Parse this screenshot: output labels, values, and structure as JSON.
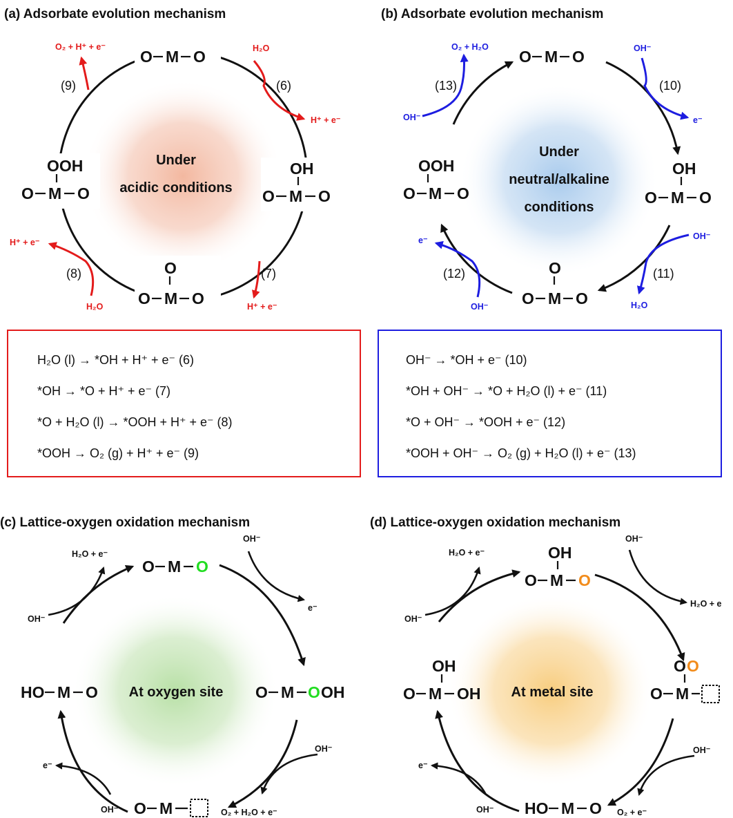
{
  "colors": {
    "acid": "#e31b1b",
    "base": "#1d1de0",
    "lattice_o_c": "#22dd22",
    "lattice_o_d": "#f28c1c",
    "glow_a": "#f3b8a0",
    "glow_b": "#a9cbed",
    "glow_c": "#b8e0a6",
    "glow_d": "#f8cd7f"
  },
  "panels": {
    "a": {
      "title": "(a)  Adsorbate evolution mechanism",
      "center": [
        "Under",
        "acidic conditions"
      ],
      "steps": [
        "(6)",
        "(7)",
        "(8)",
        "(9)"
      ],
      "species": {
        "h2o_top": "H₂O",
        "hpe_right": "H⁺ + e⁻",
        "hpe_bottom": "H⁺ + e⁻",
        "h2o_bottom": "H₂O",
        "hpe_left": "H⁺ + e⁻",
        "o2_top": "O₂ + H⁺ + e⁻"
      },
      "equations": [
        "H₂O (l) → *OH + H⁺ + e⁻   (6)",
        "*OH → *O + H⁺ + e⁻   (7)",
        "*O + H₂O (l) → *OOH + H⁺ + e⁻   (8)",
        "*OOH → O₂ (g) + H⁺ + e⁻   (9)"
      ]
    },
    "b": {
      "title": "(b) Adsorbate evolution mechanism",
      "center": [
        "Under",
        "neutral/alkaline",
        "conditions"
      ],
      "steps": [
        "(10)",
        "(11)",
        "(12)",
        "(13)"
      ],
      "species": {
        "oh_top": "OH⁻",
        "e_right": "e⁻",
        "oh_right": "OH⁻",
        "h2o_bottom": "H₂O",
        "e_left": "e⁻",
        "oh_bottom": "OH⁻",
        "oh_left": "OH⁻",
        "o2h2o_top": "O₂ + H₂O"
      },
      "equations": [
        "OH⁻ → *OH + e⁻   (10)",
        "*OH + OH⁻ → *O + H₂O (l) + e⁻   (11)",
        "*O + OH⁻ → *OOH + e⁻   (12)",
        "*OOH + OH⁻ → O₂ (g) + H₂O (l) + e⁻   (13)"
      ]
    },
    "c": {
      "title": "(c) Lattice-oxygen oxidation mechanism",
      "center": "At oxygen site",
      "species": {
        "oh_tr": "OH⁻",
        "e_tr": "e⁻",
        "oh_br": "OH⁻",
        "prod_br": "O₂ + H₂O + e⁻",
        "e_bl": "e⁻",
        "oh_bl": "OH⁻",
        "oh_tl": "OH⁻",
        "h2oe_tl": "H₂O + e⁻"
      }
    },
    "d": {
      "title": "(d) Lattice-oxygen oxidation mechanism",
      "center": "At metal site",
      "species": {
        "oh_tr": "OH⁻",
        "h2oe_tr": "H₂O + e",
        "oh_br": "OH⁻",
        "o2e_br": "O₂ + e⁻",
        "e_bl": "e⁻",
        "oh_bl": "OH⁻",
        "oh_tl": "OH⁻",
        "h2oe_tl": "H₂O + e⁻"
      }
    }
  },
  "structures": {
    "O": "O",
    "M": "M",
    "H": "H",
    "OH": "OH",
    "OOH": "OOH",
    "HO": "HO"
  }
}
